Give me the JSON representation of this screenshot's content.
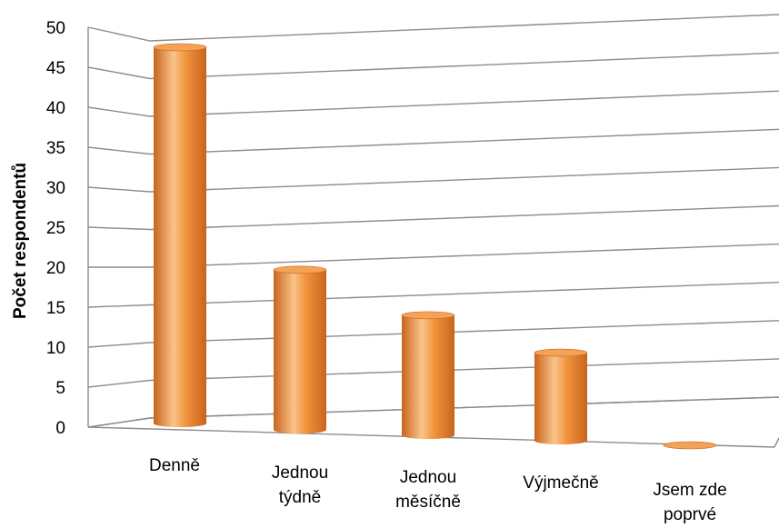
{
  "chart_data": {
    "type": "bar",
    "style": "3d-cylinder",
    "categories": [
      [
        "Denně"
      ],
      [
        "Jednou",
        "týdně"
      ],
      [
        "Jednou",
        "měsíčně"
      ],
      [
        "Výjmečně"
      ],
      [
        "Jsem zde",
        "poprvé"
      ]
    ],
    "values": [
      47,
      20,
      15,
      11,
      0
    ],
    "title": "",
    "xlabel": "",
    "ylabel": "Počet respondentů",
    "ylim": [
      0,
      50
    ],
    "yticks": [
      "0",
      "5",
      "10",
      "15",
      "20",
      "25",
      "30",
      "35",
      "40",
      "45",
      "50"
    ],
    "grid": true,
    "legend": "none",
    "colors": {
      "bar_main": "#f0923b",
      "bar_light": "#fbc48a",
      "bar_dark": "#c8641e",
      "bar_top": "#f4a356",
      "grid": "#8c8c8c"
    }
  }
}
